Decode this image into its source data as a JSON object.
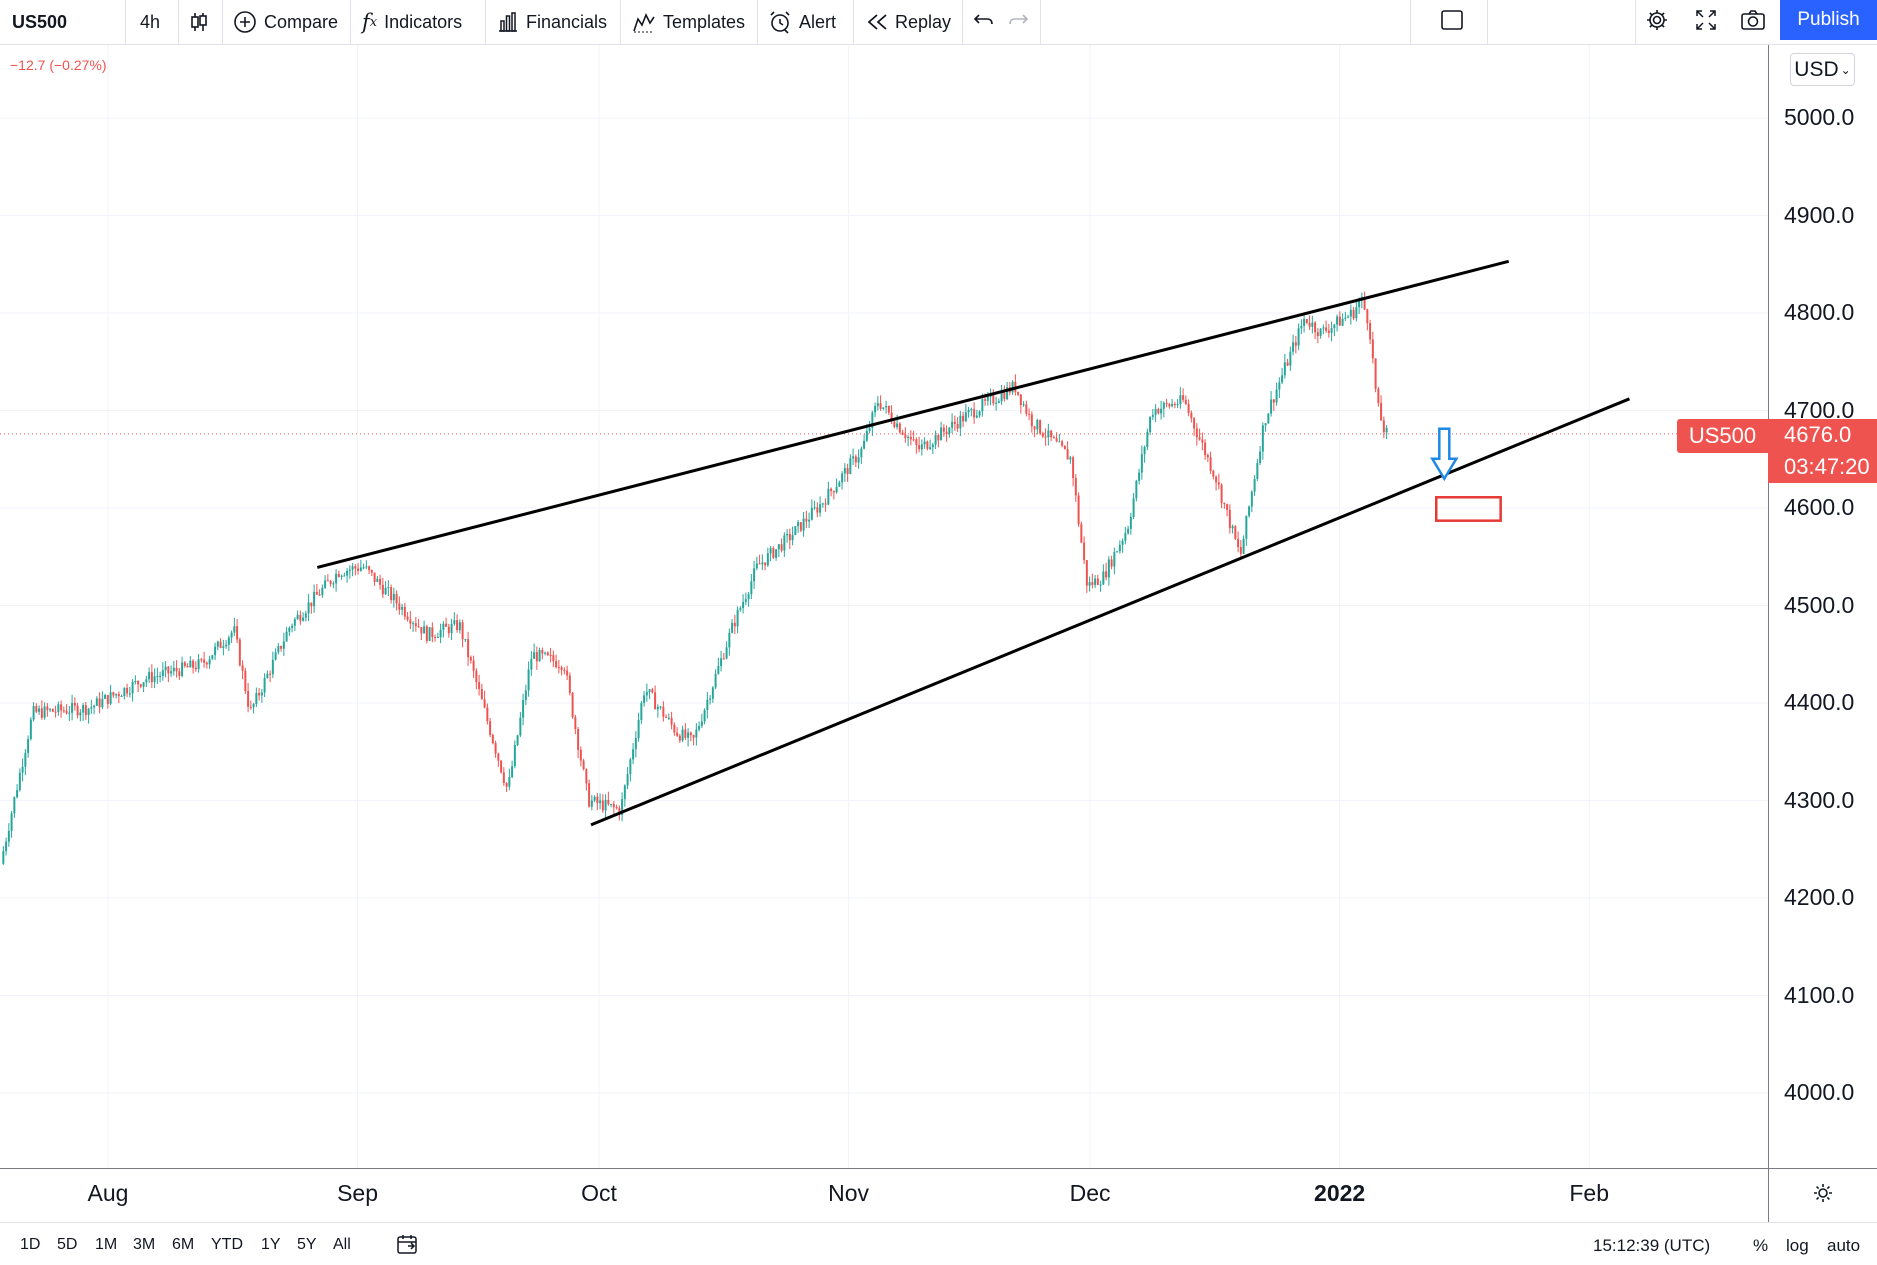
{
  "toolbar": {
    "symbol": "US500",
    "interval": "4h",
    "compare": "Compare",
    "indicators": "Indicators",
    "financials": "Financials",
    "templates": "Templates",
    "alert": "Alert",
    "replay": "Replay",
    "publish": "Publish"
  },
  "legend": {
    "change": "−12.7 (−0.27%)"
  },
  "price_axis": {
    "currency": "USD",
    "ticks": [
      "5000.0",
      "4900.0",
      "4800.0",
      "4700.0",
      "4600.0",
      "4500.0",
      "4400.0",
      "4300.0",
      "4200.0",
      "4100.0",
      "4000.0"
    ],
    "symbol_tag": "US500",
    "last_price": "4676.0",
    "countdown": "03:47:20"
  },
  "time_axis": {
    "ticks": [
      "Aug",
      "Sep",
      "Oct",
      "Nov",
      "Dec",
      "2022",
      "Feb"
    ]
  },
  "bottom_bar": {
    "ranges": [
      "1D",
      "5D",
      "1M",
      "3M",
      "6M",
      "YTD",
      "1Y",
      "5Y",
      "All"
    ],
    "clock": "15:12:39 (UTC)",
    "percent": "%",
    "log": "log",
    "auto": "auto"
  },
  "colors": {
    "up": "#26a69a",
    "down": "#ef5350",
    "accent": "#2962ff",
    "arrow": "#1e88e5",
    "target_box": "#e53935",
    "trendline": "#000000"
  },
  "chart_data": {
    "type": "candlestick",
    "symbol": "US500",
    "interval": "4h",
    "ylim": [
      3935,
      5065
    ],
    "y_ticks": [
      4000,
      4100,
      4200,
      4300,
      4400,
      4500,
      4600,
      4700,
      4800,
      4900,
      5000
    ],
    "x_ticks": [
      "Aug",
      "Sep",
      "Oct",
      "Nov",
      "Dec",
      "2022",
      "Feb"
    ],
    "last_price": 4676.0,
    "change": -12.7,
    "change_pct": -0.27,
    "price_path": [
      [
        "2021-07-19",
        4235
      ],
      [
        "2021-07-23",
        4390
      ],
      [
        "2021-07-30",
        4395
      ],
      [
        "2021-08-06",
        4425
      ],
      [
        "2021-08-13",
        4440
      ],
      [
        "2021-08-17",
        4475
      ],
      [
        "2021-08-19",
        4390
      ],
      [
        "2021-08-24",
        4480
      ],
      [
        "2021-08-30",
        4535
      ],
      [
        "2021-09-02",
        4540
      ],
      [
        "2021-09-10",
        4470
      ],
      [
        "2021-09-14",
        4480
      ],
      [
        "2021-09-20",
        4310
      ],
      [
        "2021-09-23",
        4450
      ],
      [
        "2021-09-27",
        4440
      ],
      [
        "2021-09-30",
        4300
      ],
      [
        "2021-10-04",
        4290
      ],
      [
        "2021-10-07",
        4415
      ],
      [
        "2021-10-11",
        4370
      ],
      [
        "2021-10-13",
        4360
      ],
      [
        "2021-10-18",
        4480
      ],
      [
        "2021-10-21",
        4540
      ],
      [
        "2021-10-25",
        4570
      ],
      [
        "2021-10-29",
        4605
      ],
      [
        "2021-11-03",
        4660
      ],
      [
        "2021-11-05",
        4710
      ],
      [
        "2021-11-10",
        4660
      ],
      [
        "2021-11-16",
        4695
      ],
      [
        "2021-11-22",
        4725
      ],
      [
        "2021-11-24",
        4690
      ],
      [
        "2021-11-29",
        4650
      ],
      [
        "2021-11-30",
        4580
      ],
      [
        "2021-12-01",
        4520
      ],
      [
        "2021-12-03",
        4530
      ],
      [
        "2021-12-06",
        4580
      ],
      [
        "2021-12-09",
        4700
      ],
      [
        "2021-12-13",
        4710
      ],
      [
        "2021-12-17",
        4630
      ],
      [
        "2021-12-20",
        4550
      ],
      [
        "2021-12-23",
        4690
      ],
      [
        "2021-12-28",
        4795
      ],
      [
        "2021-12-30",
        4780
      ],
      [
        "2022-01-03",
        4800
      ],
      [
        "2022-01-04",
        4815
      ],
      [
        "2022-01-05",
        4790
      ],
      [
        "2022-01-06",
        4705
      ],
      [
        "2022-01-07",
        4676
      ]
    ],
    "annotations": [
      {
        "type": "trendline",
        "role": "upper",
        "from": [
          "2021-08-27",
          4539
        ],
        "to": [
          "2022-01-22",
          4853
        ]
      },
      {
        "type": "trendline",
        "role": "lower",
        "from": [
          "2021-09-30",
          4275
        ],
        "to": [
          "2022-02-06",
          4712
        ]
      },
      {
        "type": "arrow",
        "direction": "down",
        "at": [
          "2022-01-14",
          4630
        ]
      },
      {
        "type": "rectangle",
        "from": [
          "2022-01-13",
          4611
        ],
        "to": [
          "2022-01-21",
          4587
        ]
      }
    ]
  }
}
